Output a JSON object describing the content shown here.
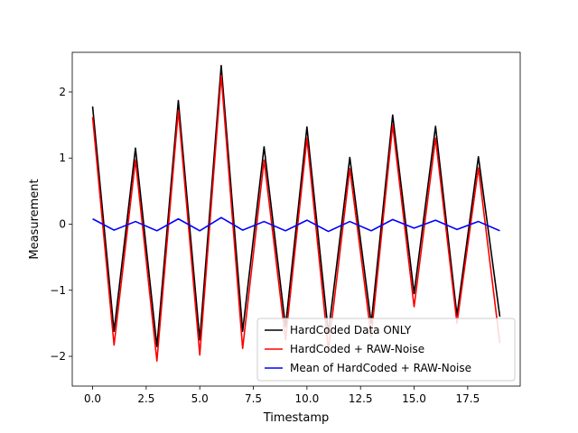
{
  "chart_data": {
    "type": "line",
    "title": "",
    "xlabel": "Timestamp",
    "ylabel": "Measurement",
    "xlim": [
      -0.95,
      19.95
    ],
    "ylim": [
      -2.45,
      2.6
    ],
    "xticks": [
      0.0,
      2.5,
      5.0,
      7.5,
      10.0,
      12.5,
      15.0,
      17.5
    ],
    "xtick_labels": [
      "0.0",
      "2.5",
      "5.0",
      "7.5",
      "10.0",
      "12.5",
      "15.0",
      "17.5"
    ],
    "yticks": [
      -2,
      -1,
      0,
      1,
      2
    ],
    "ytick_labels": [
      "−2",
      "−1",
      "0",
      "1",
      "2"
    ],
    "grid": false,
    "legend_position": "lower-right",
    "x": [
      0,
      1,
      2,
      3,
      4,
      5,
      6,
      7,
      8,
      9,
      10,
      11,
      12,
      13,
      14,
      15,
      16,
      17,
      18,
      19
    ],
    "series": [
      {
        "name": "HardCoded Data ONLY",
        "color": "#000000",
        "values": [
          1.78,
          -1.62,
          1.15,
          -1.85,
          1.87,
          -1.75,
          2.4,
          -1.62,
          1.17,
          -1.55,
          1.47,
          -1.65,
          1.01,
          -1.5,
          1.65,
          -1.05,
          1.48,
          -1.38,
          1.02,
          -1.4
        ]
      },
      {
        "name": "HardCoded + RAW-Noise",
        "color": "#ff0000",
        "values": [
          1.62,
          -1.83,
          0.97,
          -2.07,
          1.72,
          -1.98,
          2.25,
          -1.88,
          0.97,
          -1.75,
          1.3,
          -1.9,
          0.84,
          -1.7,
          1.5,
          -1.25,
          1.3,
          -1.5,
          0.85,
          -1.8
        ]
      },
      {
        "name": "Mean of HardCoded + RAW-Noise",
        "color": "#0000ff",
        "values": [
          0.08,
          -0.09,
          0.04,
          -0.1,
          0.08,
          -0.1,
          0.1,
          -0.09,
          0.04,
          -0.1,
          0.06,
          -0.11,
          0.04,
          -0.1,
          0.07,
          -0.06,
          0.06,
          -0.08,
          0.04,
          -0.1
        ]
      }
    ]
  }
}
